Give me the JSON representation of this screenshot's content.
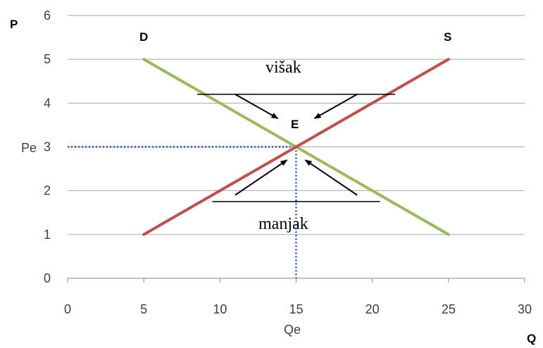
{
  "chart_data": {
    "type": "line",
    "x_axis": {
      "range": [
        0,
        30
      ],
      "ticks": [
        "0",
        "5",
        "10",
        "15",
        "20",
        "25",
        "30"
      ],
      "label": "Q"
    },
    "y_axis": {
      "range": [
        0,
        6
      ],
      "ticks": [
        "0",
        "1",
        "2",
        "3",
        "4",
        "5",
        "6"
      ],
      "label": "P"
    },
    "grid": "horizontal",
    "series": [
      {
        "name": "D",
        "color": "#9bbb59",
        "points": [
          [
            5,
            5
          ],
          [
            25,
            1
          ]
        ]
      },
      {
        "name": "S",
        "color": "#c0504d",
        "points": [
          [
            5,
            1
          ],
          [
            25,
            5
          ]
        ]
      }
    ],
    "equilibrium": {
      "point": [
        15,
        3
      ],
      "label": "E",
      "price_label": "Pe",
      "quantity_label": "Qe",
      "guide_color": "#4472c4"
    },
    "annotations": {
      "surplus": {
        "text": "višak",
        "price": 4.2,
        "x_from": 8.5,
        "x_to": 21.5
      },
      "shortage": {
        "text": "manjak",
        "price": 1.75,
        "x_from": 9.5,
        "x_to": 20.5
      }
    },
    "arrows": [
      {
        "from": [
          11,
          4.2
        ],
        "to": [
          13.8,
          3.65
        ]
      },
      {
        "from": [
          19,
          4.2
        ],
        "to": [
          16.2,
          3.65
        ]
      },
      {
        "from": [
          11,
          1.9
        ],
        "to": [
          14.4,
          2.7
        ]
      },
      {
        "from": [
          19,
          1.9
        ],
        "to": [
          15.6,
          2.7
        ]
      }
    ]
  }
}
